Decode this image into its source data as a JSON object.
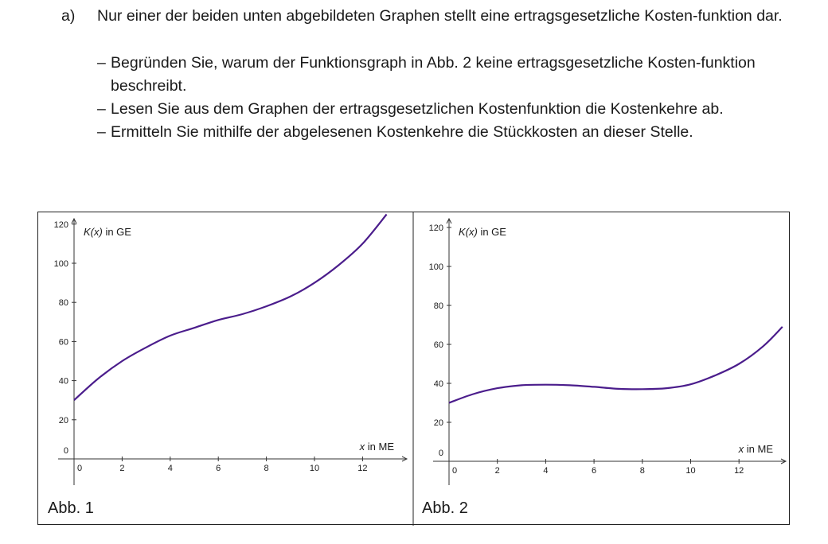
{
  "task": {
    "label": "a)",
    "intro": "Nur einer der beiden unten abgebildeten Graphen stellt eine ertragsgesetzliche Kosten-funktion dar.",
    "bullets": [
      "Begründen Sie, warum der Funktionsgraph in Abb. 2 keine ertragsgesetzliche Kosten-funktion beschreibt.",
      "Lesen Sie aus dem Graphen der ertragsgesetzlichen Kostenfunktion die Kostenkehre ab.",
      "Ermitteln Sie mithilfe der abgelesenen Kostenkehre die Stückkosten an dieser Stelle."
    ],
    "dash": "–"
  },
  "chart_data": [
    {
      "type": "line",
      "caption": "Abb. 1",
      "ylabel": "K(x) in GE",
      "xlabel_var": "x",
      "xlabel_unit": "in ME",
      "xlim": [
        0,
        13
      ],
      "ylim": [
        0,
        120
      ],
      "xticks": [
        0,
        2,
        4,
        6,
        8,
        10,
        12
      ],
      "yticks": [
        0,
        20,
        40,
        60,
        80,
        100,
        120
      ],
      "line_color": "#4b1d8c",
      "x": [
        0,
        1,
        2,
        3,
        4,
        5,
        6,
        7,
        8,
        9,
        10,
        11,
        12,
        13
      ],
      "y": [
        30,
        41,
        50,
        57,
        63,
        67,
        71,
        74,
        78,
        83,
        90,
        99,
        110,
        125
      ]
    },
    {
      "type": "line",
      "caption": "Abb. 2",
      "ylabel": "K(x) in GE",
      "xlabel_var": "x",
      "xlabel_unit": "in ME",
      "xlim": [
        0,
        13.8
      ],
      "ylim": [
        0,
        120
      ],
      "xticks": [
        0,
        2,
        4,
        6,
        8,
        10,
        12
      ],
      "yticks": [
        0,
        20,
        40,
        60,
        80,
        100,
        120
      ],
      "line_color": "#4b1d8c",
      "x": [
        0,
        1,
        2,
        3,
        4,
        5,
        6,
        7,
        8,
        9,
        10,
        11,
        12,
        13,
        13.8
      ],
      "y": [
        30,
        34.5,
        37.5,
        39,
        39.3,
        39,
        38.2,
        37.2,
        37,
        37.5,
        39.5,
        44,
        50,
        59,
        69
      ]
    }
  ]
}
